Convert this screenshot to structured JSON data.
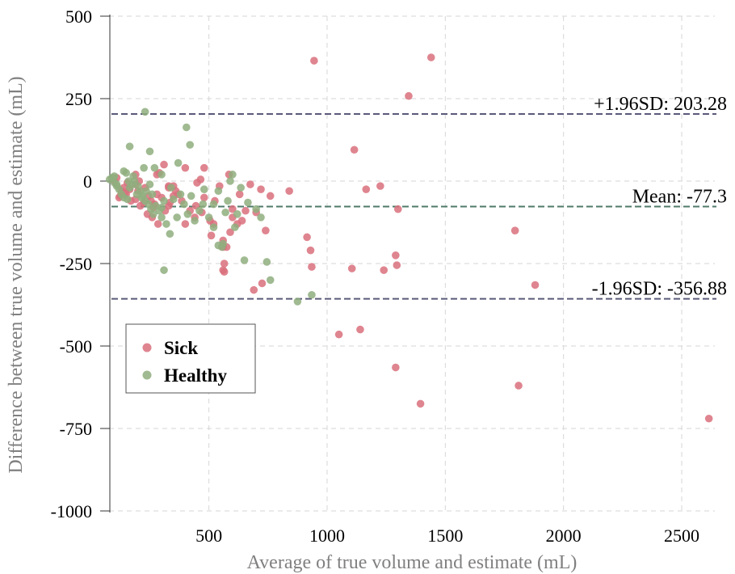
{
  "chart_data": {
    "type": "scatter",
    "xlabel": "Average of true volume and estimate (mL)",
    "ylabel": "Difference between true volume and estimate (mL)",
    "xlim": [
      40,
      2640
    ],
    "ylim": [
      -1000,
      500
    ],
    "xticks": [
      500,
      1000,
      1500,
      2000,
      2500
    ],
    "yticks": [
      500,
      250,
      0,
      -250,
      -500,
      -750,
      -1000
    ],
    "xtick_labels": [
      "500",
      "1000",
      "1500",
      "2000",
      "2500"
    ],
    "ytick_labels": [
      "500",
      "250",
      "0",
      "-250",
      "-500",
      "-750",
      "-1000"
    ],
    "grid": true,
    "legend_position": "lower-left",
    "reference_lines": [
      {
        "value": 203.28,
        "label": "+1.96SD: 203.28",
        "color": "#5a5a7a"
      },
      {
        "value": -77.3,
        "label": "Mean: -77.3",
        "color": "#4f7a6a"
      },
      {
        "value": -356.88,
        "label": "-1.96SD: -356.88",
        "color": "#5a5a7a"
      }
    ],
    "series": [
      {
        "name": "Sick",
        "color": "#d9707c",
        "points": [
          [
            945,
            365
          ],
          [
            1440,
            375
          ],
          [
            1345,
            258
          ],
          [
            1115,
            95
          ],
          [
            1165,
            -25
          ],
          [
            1225,
            -15
          ],
          [
            1300,
            -85
          ],
          [
            1240,
            -270
          ],
          [
            1295,
            -255
          ],
          [
            1290,
            -225
          ],
          [
            915,
            -170
          ],
          [
            930,
            -210
          ],
          [
            935,
            -260
          ],
          [
            1105,
            -265
          ],
          [
            1050,
            -465
          ],
          [
            1140,
            -450
          ],
          [
            1290,
            -565
          ],
          [
            1395,
            -675
          ],
          [
            1795,
            -150
          ],
          [
            1810,
            -620
          ],
          [
            1880,
            -315
          ],
          [
            2615,
            -720
          ],
          [
            840,
            -30
          ],
          [
            760,
            -45
          ],
          [
            720,
            -25
          ],
          [
            740,
            -150
          ],
          [
            690,
            -330
          ],
          [
            725,
            -310
          ],
          [
            675,
            -10
          ],
          [
            640,
            -120
          ],
          [
            620,
            -130
          ],
          [
            655,
            -90
          ],
          [
            600,
            -110
          ],
          [
            575,
            -200
          ],
          [
            560,
            -200
          ],
          [
            565,
            -250
          ],
          [
            560,
            -270
          ],
          [
            565,
            -275
          ],
          [
            590,
            -155
          ],
          [
            510,
            -165
          ],
          [
            505,
            -120
          ],
          [
            480,
            -50
          ],
          [
            465,
            5
          ],
          [
            480,
            40
          ],
          [
            440,
            -110
          ],
          [
            420,
            -90
          ],
          [
            400,
            -130
          ],
          [
            385,
            -60
          ],
          [
            370,
            -40
          ],
          [
            350,
            -15
          ],
          [
            330,
            -15
          ],
          [
            310,
            50
          ],
          [
            290,
            25
          ],
          [
            300,
            -50
          ],
          [
            280,
            -40
          ],
          [
            270,
            -70
          ],
          [
            255,
            -60
          ],
          [
            240,
            -100
          ],
          [
            225,
            -65
          ],
          [
            210,
            -75
          ],
          [
            200,
            -30
          ],
          [
            190,
            -10
          ],
          [
            170,
            -60
          ],
          [
            150,
            -40
          ],
          [
            140,
            -20
          ],
          [
            130,
            -30
          ],
          [
            110,
            10
          ],
          [
            100,
            0
          ],
          [
            120,
            -50
          ],
          [
            155,
            -5
          ],
          [
            190,
            20
          ],
          [
            245,
            -45
          ],
          [
            260,
            -110
          ],
          [
            330,
            -75
          ],
          [
            360,
            -30
          ],
          [
            445,
            -75
          ],
          [
            525,
            -60
          ],
          [
            585,
            20
          ],
          [
            600,
            -85
          ],
          [
            630,
            -40
          ],
          [
            700,
            -95
          ],
          [
            545,
            -15
          ],
          [
            470,
            -95
          ],
          [
            520,
            -130
          ],
          [
            560,
            -180
          ],
          [
            330,
            -20
          ],
          [
            285,
            -130
          ],
          [
            205,
            0
          ],
          [
            280,
            20
          ],
          [
            400,
            40
          ],
          [
            450,
            -5
          ],
          [
            350,
            -45
          ],
          [
            335,
            -65
          ],
          [
            315,
            -90
          ],
          [
            230,
            -20
          ],
          [
            265,
            -80
          ],
          [
            190,
            -55
          ],
          [
            165,
            -25
          ],
          [
            145,
            -35
          ],
          [
            125,
            -45
          ]
        ]
      },
      {
        "name": "Healthy",
        "color": "#8fae7e",
        "points": [
          [
            230,
            210
          ],
          [
            405,
            163
          ],
          [
            420,
            110
          ],
          [
            165,
            105
          ],
          [
            250,
            90
          ],
          [
            370,
            55
          ],
          [
            300,
            20
          ],
          [
            140,
            30
          ],
          [
            150,
            25
          ],
          [
            95,
            10
          ],
          [
            100,
            -5
          ],
          [
            110,
            -15
          ],
          [
            120,
            -25
          ],
          [
            130,
            -40
          ],
          [
            140,
            -50
          ],
          [
            155,
            -55
          ],
          [
            165,
            -20
          ],
          [
            175,
            -10
          ],
          [
            185,
            0
          ],
          [
            200,
            -15
          ],
          [
            210,
            -30
          ],
          [
            220,
            -45
          ],
          [
            230,
            -60
          ],
          [
            245,
            -70
          ],
          [
            255,
            -85
          ],
          [
            265,
            -100
          ],
          [
            275,
            -75
          ],
          [
            290,
            -90
          ],
          [
            300,
            -110
          ],
          [
            310,
            -60
          ],
          [
            320,
            -130
          ],
          [
            335,
            -160
          ],
          [
            350,
            -55
          ],
          [
            365,
            -110
          ],
          [
            380,
            -40
          ],
          [
            395,
            -70
          ],
          [
            410,
            -100
          ],
          [
            425,
            -45
          ],
          [
            440,
            -120
          ],
          [
            460,
            -90
          ],
          [
            480,
            -25
          ],
          [
            500,
            -110
          ],
          [
            520,
            -140
          ],
          [
            540,
            -195
          ],
          [
            555,
            -200
          ],
          [
            560,
            -190
          ],
          [
            570,
            -95
          ],
          [
            580,
            -60
          ],
          [
            590,
            0
          ],
          [
            600,
            20
          ],
          [
            610,
            -140
          ],
          [
            620,
            -100
          ],
          [
            635,
            -20
          ],
          [
            650,
            -240
          ],
          [
            665,
            -65
          ],
          [
            700,
            -85
          ],
          [
            720,
            -110
          ],
          [
            745,
            -245
          ],
          [
            760,
            -300
          ],
          [
            875,
            -365
          ],
          [
            935,
            -345
          ],
          [
            310,
            -270
          ],
          [
            250,
            -10
          ],
          [
            270,
            40
          ],
          [
            225,
            40
          ],
          [
            195,
            -40
          ],
          [
            180,
            15
          ],
          [
            160,
            0
          ],
          [
            110,
            -10
          ],
          [
            80,
            5
          ],
          [
            90,
            10
          ],
          [
            100,
            15
          ],
          [
            300,
            -80
          ],
          [
            340,
            -20
          ],
          [
            260,
            -40
          ],
          [
            215,
            -50
          ],
          [
            235,
            -30
          ],
          [
            520,
            -70
          ],
          [
            540,
            -30
          ],
          [
            475,
            -70
          ]
        ]
      }
    ]
  }
}
